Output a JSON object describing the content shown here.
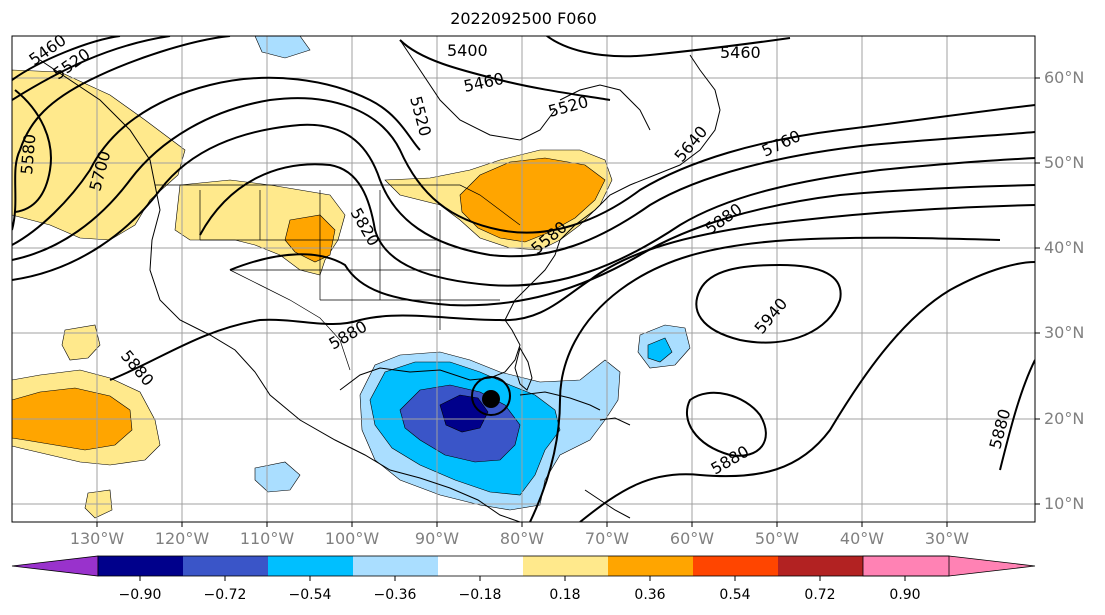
{
  "title": "2022092500 F060",
  "lat_labels": [
    "60°N",
    "50°N",
    "40°N",
    "30°N",
    "20°N",
    "10°N"
  ],
  "lon_labels": [
    "130°W",
    "120°W",
    "110°W",
    "100°W",
    "90°W",
    "80°W",
    "70°W",
    "60°W",
    "50°W",
    "40°W",
    "30°W"
  ],
  "colorbar": {
    "ticks": [
      "−0.90",
      "−0.72",
      "−0.54",
      "−0.36",
      "−0.18",
      "0.18",
      "0.36",
      "0.54",
      "0.72",
      "0.90"
    ],
    "colors": [
      "#9932cc",
      "#00008b",
      "#3a55c8",
      "#00bfff",
      "#aadeff",
      "#ffffff",
      "#ffe98c",
      "#ffa500",
      "#ff4500",
      "#b22222",
      "#ff82b4"
    ]
  },
  "contour_labels": [
    "5460",
    "5520",
    "5400",
    "5460",
    "5460",
    "5520",
    "5520",
    "5580",
    "5700",
    "5820",
    "5640",
    "5760",
    "5880",
    "5580",
    "5940",
    "5880",
    "5880",
    "5880",
    "5880"
  ],
  "storm_marker": "tropical-cyclone-symbol"
}
